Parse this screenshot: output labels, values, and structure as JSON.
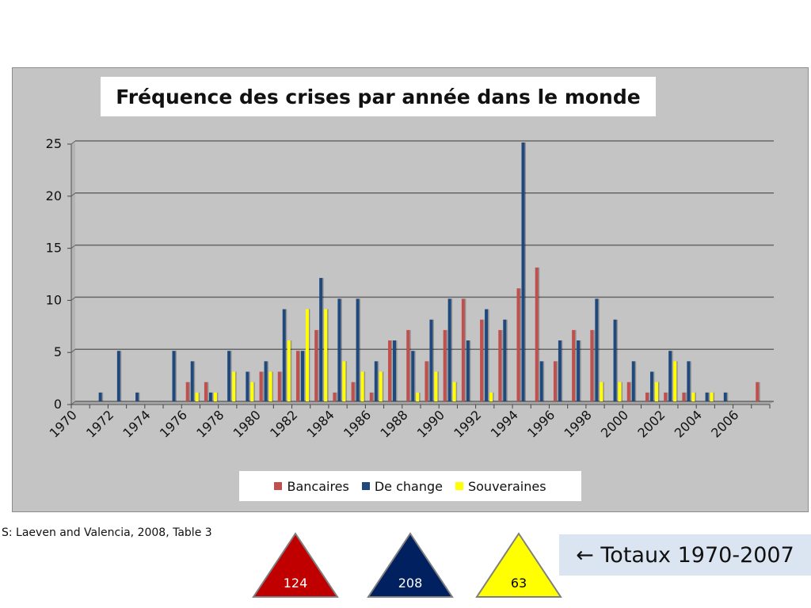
{
  "chart_data": {
    "type": "bar",
    "title": "Fréquence des crises  par année dans le monde",
    "xlabel": "",
    "ylabel": "",
    "ylim": [
      0,
      25
    ],
    "yticks": [
      "0",
      "5",
      "10",
      "15",
      "20",
      "25"
    ],
    "categories": [
      "1970",
      "1971",
      "1972",
      "1973",
      "1974",
      "1975",
      "1976",
      "1977",
      "1978",
      "1979",
      "1980",
      "1981",
      "1982",
      "1983",
      "1984",
      "1985",
      "1986",
      "1987",
      "1988",
      "1989",
      "1990",
      "1991",
      "1992",
      "1993",
      "1994",
      "1995",
      "1996",
      "1997",
      "1998",
      "1999",
      "2000",
      "2001",
      "2002",
      "2003",
      "2004",
      "2005",
      "2006",
      "2007"
    ],
    "xtick_labels": [
      "1970",
      "",
      "1972",
      "",
      "1974",
      "",
      "1976",
      "",
      "1978",
      "",
      "1980",
      "",
      "1982",
      "",
      "1984",
      "",
      "1986",
      "",
      "1988",
      "",
      "1990",
      "",
      "1992",
      "",
      "1994",
      "",
      "1996",
      "",
      "1998",
      "",
      "2000",
      "",
      "2002",
      "",
      "2004",
      "",
      "2006",
      ""
    ],
    "grid": true,
    "legend_position": "bottom",
    "series": [
      {
        "name": "Bancaires",
        "color": "#c0504d",
        "values": [
          0,
          0,
          0,
          0,
          0,
          0,
          2,
          2,
          0,
          0,
          3,
          3,
          5,
          7,
          1,
          2,
          1,
          6,
          7,
          4,
          7,
          10,
          8,
          7,
          11,
          13,
          4,
          7,
          7,
          0,
          2,
          1,
          1,
          1,
          0,
          0,
          0,
          2
        ]
      },
      {
        "name": "De change",
        "color": "#1f497d",
        "values": [
          0,
          1,
          5,
          1,
          0,
          5,
          4,
          1,
          5,
          3,
          4,
          9,
          5,
          12,
          10,
          10,
          4,
          6,
          5,
          8,
          10,
          6,
          9,
          8,
          25,
          4,
          6,
          6,
          10,
          8,
          4,
          3,
          5,
          4,
          1,
          1,
          0,
          0
        ]
      },
      {
        "name": "Souveraines",
        "color": "#ffff00",
        "values": [
          0,
          0,
          0,
          0,
          0,
          0,
          1,
          1,
          3,
          2,
          3,
          6,
          9,
          9,
          4,
          3,
          3,
          0,
          1,
          3,
          2,
          0,
          1,
          0,
          0,
          0,
          0,
          0,
          2,
          2,
          0,
          2,
          4,
          1,
          1,
          0,
          0,
          0
        ]
      }
    ]
  },
  "source_note": "S: Laeven and Valencia, 2008, Table 3",
  "totals": {
    "label": "← Totaux 1970-2007",
    "items": [
      {
        "value": "124",
        "fill": "#c00000",
        "text_color": "#ffffff"
      },
      {
        "value": "208",
        "fill": "#002060",
        "text_color": "#ffffff"
      },
      {
        "value": "63",
        "fill": "#ffff00",
        "text_color": "#000000"
      }
    ]
  }
}
